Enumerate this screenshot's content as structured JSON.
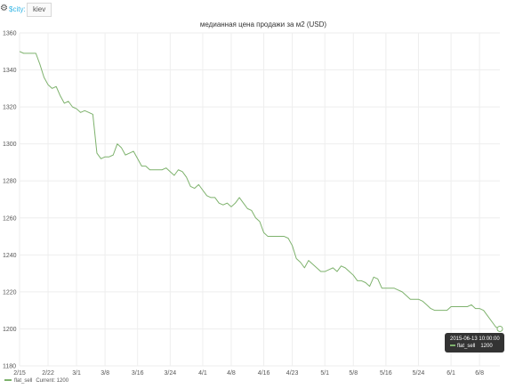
{
  "variables": {
    "label": "$city:",
    "value": "kiev",
    "settings_icon": "gear-icon"
  },
  "panel": {
    "title": "медианная цена продажи за м2 (USD)"
  },
  "legend": {
    "series": "flat_sell",
    "current": "Current: 1200"
  },
  "tooltip": {
    "time": "2015-06-13 10:00:00",
    "series": "flat_sell",
    "value": "1200"
  },
  "colors": {
    "series": "#7eb26d",
    "accent": "#33b5e5",
    "grid": "#eeeeee"
  },
  "chart_data": {
    "type": "line",
    "title": "медианная цена продажи за м2 (USD)",
    "x_start": "2015-02-15",
    "x_end": "2015-06-13",
    "xticks": [
      "2/15",
      "2/22",
      "3/1",
      "3/8",
      "3/16",
      "3/24",
      "4/1",
      "4/8",
      "4/16",
      "4/23",
      "5/1",
      "5/8",
      "5/16",
      "5/24",
      "6/1",
      "6/8"
    ],
    "yticks": [
      1180,
      1200,
      1220,
      1240,
      1260,
      1280,
      1300,
      1320,
      1340,
      1360
    ],
    "ylim": [
      1180,
      1360
    ],
    "grid": true,
    "legend_position": "bottom-left",
    "series": [
      {
        "name": "flat_sell",
        "color": "#7eb26d",
        "points": [
          [
            "2015-02-15",
            1350
          ],
          [
            "2015-02-16",
            1349
          ],
          [
            "2015-02-19",
            1349
          ],
          [
            "2015-02-20",
            1343
          ],
          [
            "2015-02-21",
            1336
          ],
          [
            "2015-02-22",
            1332
          ],
          [
            "2015-02-23",
            1330
          ],
          [
            "2015-02-24",
            1331
          ],
          [
            "2015-02-25",
            1326
          ],
          [
            "2015-02-26",
            1322
          ],
          [
            "2015-02-27",
            1323
          ],
          [
            "2015-02-28",
            1320
          ],
          [
            "2015-03-01",
            1319
          ],
          [
            "2015-03-02",
            1317
          ],
          [
            "2015-03-03",
            1318
          ],
          [
            "2015-03-04",
            1317
          ],
          [
            "2015-03-05",
            1316
          ],
          [
            "2015-03-06",
            1295
          ],
          [
            "2015-03-07",
            1292
          ],
          [
            "2015-03-08",
            1293
          ],
          [
            "2015-03-09",
            1293
          ],
          [
            "2015-03-10",
            1294
          ],
          [
            "2015-03-11",
            1300
          ],
          [
            "2015-03-12",
            1298
          ],
          [
            "2015-03-13",
            1294
          ],
          [
            "2015-03-14",
            1295
          ],
          [
            "2015-03-15",
            1296
          ],
          [
            "2015-03-16",
            1292
          ],
          [
            "2015-03-17",
            1288
          ],
          [
            "2015-03-18",
            1288
          ],
          [
            "2015-03-19",
            1286
          ],
          [
            "2015-03-20",
            1286
          ],
          [
            "2015-03-22",
            1286
          ],
          [
            "2015-03-23",
            1287
          ],
          [
            "2015-03-24",
            1285
          ],
          [
            "2015-03-25",
            1283
          ],
          [
            "2015-03-26",
            1286
          ],
          [
            "2015-03-27",
            1285
          ],
          [
            "2015-03-28",
            1282
          ],
          [
            "2015-03-29",
            1277
          ],
          [
            "2015-03-30",
            1276
          ],
          [
            "2015-03-31",
            1278
          ],
          [
            "2015-04-01",
            1275
          ],
          [
            "2015-04-02",
            1272
          ],
          [
            "2015-04-03",
            1271
          ],
          [
            "2015-04-04",
            1271
          ],
          [
            "2015-04-05",
            1268
          ],
          [
            "2015-04-06",
            1267
          ],
          [
            "2015-04-07",
            1268
          ],
          [
            "2015-04-08",
            1266
          ],
          [
            "2015-04-09",
            1268
          ],
          [
            "2015-04-10",
            1271
          ],
          [
            "2015-04-11",
            1268
          ],
          [
            "2015-04-12",
            1265
          ],
          [
            "2015-04-13",
            1264
          ],
          [
            "2015-04-14",
            1260
          ],
          [
            "2015-04-15",
            1258
          ],
          [
            "2015-04-16",
            1252
          ],
          [
            "2015-04-17",
            1250
          ],
          [
            "2015-04-18",
            1250
          ],
          [
            "2015-04-19",
            1250
          ],
          [
            "2015-04-20",
            1250
          ],
          [
            "2015-04-21",
            1250
          ],
          [
            "2015-04-22",
            1249
          ],
          [
            "2015-04-23",
            1245
          ],
          [
            "2015-04-24",
            1238
          ],
          [
            "2015-04-25",
            1236
          ],
          [
            "2015-04-26",
            1233
          ],
          [
            "2015-04-27",
            1237
          ],
          [
            "2015-04-28",
            1235
          ],
          [
            "2015-04-29",
            1233
          ],
          [
            "2015-04-30",
            1231
          ],
          [
            "2015-05-01",
            1231
          ],
          [
            "2015-05-02",
            1232
          ],
          [
            "2015-05-03",
            1233
          ],
          [
            "2015-05-04",
            1231
          ],
          [
            "2015-05-05",
            1234
          ],
          [
            "2015-05-06",
            1233
          ],
          [
            "2015-05-07",
            1231
          ],
          [
            "2015-05-08",
            1229
          ],
          [
            "2015-05-09",
            1226
          ],
          [
            "2015-05-10",
            1226
          ],
          [
            "2015-05-11",
            1225
          ],
          [
            "2015-05-12",
            1223
          ],
          [
            "2015-05-13",
            1228
          ],
          [
            "2015-05-14",
            1227
          ],
          [
            "2015-05-15",
            1222
          ],
          [
            "2015-05-16",
            1222
          ],
          [
            "2015-05-18",
            1222
          ],
          [
            "2015-05-19",
            1221
          ],
          [
            "2015-05-20",
            1220
          ],
          [
            "2015-05-21",
            1218
          ],
          [
            "2015-05-22",
            1216
          ],
          [
            "2015-05-23",
            1216
          ],
          [
            "2015-05-24",
            1216
          ],
          [
            "2015-05-25",
            1215
          ],
          [
            "2015-05-26",
            1213
          ],
          [
            "2015-05-27",
            1211
          ],
          [
            "2015-05-28",
            1210
          ],
          [
            "2015-05-29",
            1210
          ],
          [
            "2015-05-30",
            1210
          ],
          [
            "2015-05-31",
            1210
          ],
          [
            "2015-06-01",
            1212
          ],
          [
            "2015-06-02",
            1212
          ],
          [
            "2015-06-03",
            1212
          ],
          [
            "2015-06-04",
            1212
          ],
          [
            "2015-06-05",
            1212
          ],
          [
            "2015-06-06",
            1213
          ],
          [
            "2015-06-07",
            1211
          ],
          [
            "2015-06-08",
            1211
          ],
          [
            "2015-06-09",
            1210
          ],
          [
            "2015-06-10",
            1207
          ],
          [
            "2015-06-11",
            1204
          ],
          [
            "2015-06-12",
            1201
          ],
          [
            "2015-06-13",
            1200
          ]
        ]
      }
    ]
  }
}
